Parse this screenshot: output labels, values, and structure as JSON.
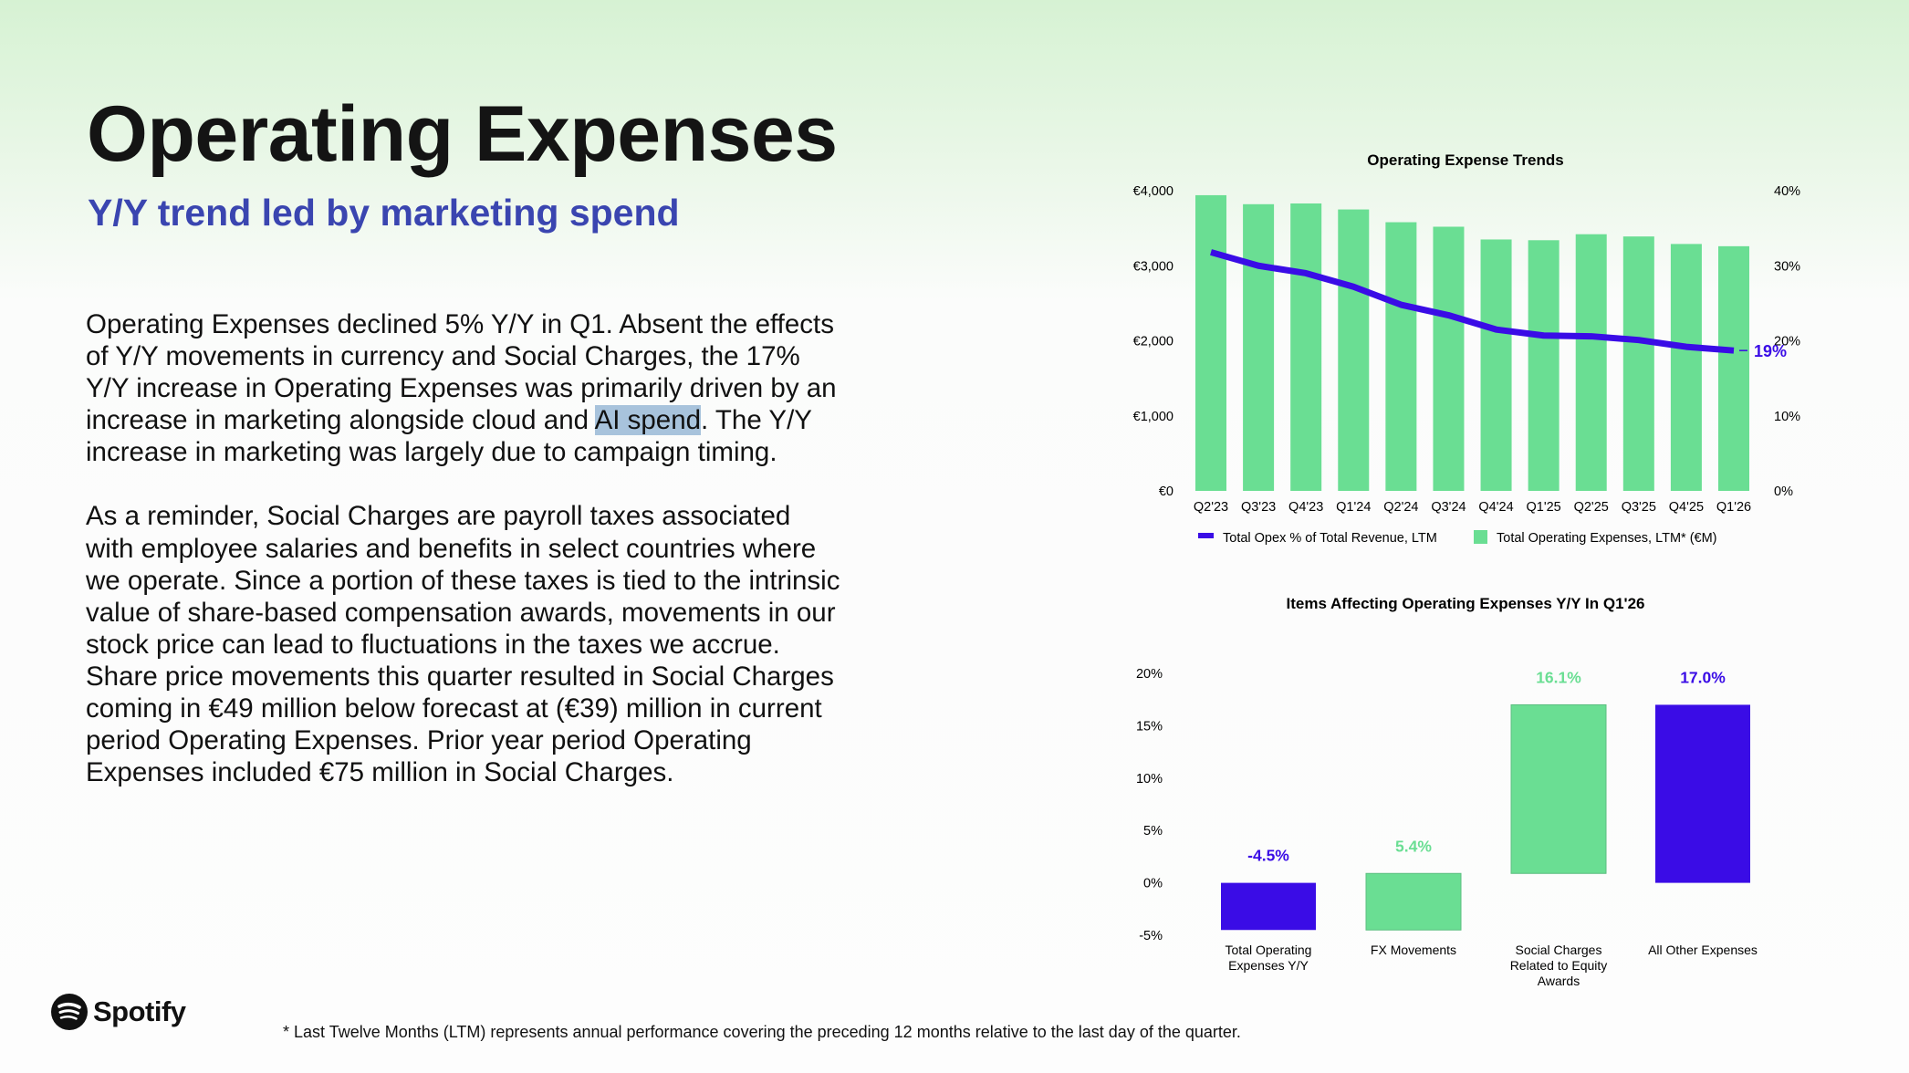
{
  "header": {
    "title": "Operating Expenses",
    "subtitle": "Y/Y trend led by marketing spend"
  },
  "body": {
    "paragraph1": {
      "lines": [
        "Operating Expenses declined 5% Y/Y in Q1. Absent the effects",
        "of Y/Y movements in currency and Social Charges, the 17%",
        "Y/Y increase in Operating Expenses was primarily driven by an"
      ],
      "line4_before": "increase in marketing alongside cloud and ",
      "line4_selected": "AI spend",
      "line4_after": ". The Y/Y",
      "line5": "increase in marketing was largely due to campaign timing."
    },
    "paragraph2": {
      "lines": [
        "As a reminder, Social Charges are payroll taxes associated",
        "with employee salaries and benefits in select countries where",
        "we operate. Since a portion of these taxes is tied to the intrinsic",
        "value of share-based compensation awards, movements in our",
        "stock price can lead to fluctuations in the taxes we accrue.",
        "Share price movements this quarter resulted in Social Charges",
        "coming in €49 million below forecast at (€39) million in current",
        "period Operating Expenses. Prior year period Operating",
        "Expenses included €75 million in Social Charges."
      ]
    }
  },
  "logo": {
    "text": "Spotify",
    "icon": "spotify-logo-icon"
  },
  "footnote": "* Last Twelve Months (LTM) represents annual performance covering the preceding 12 months relative to the last day of the quarter.",
  "colors": {
    "green": "#6ade93",
    "purple": "#3a0ce6",
    "subtitle": "#3a45b0"
  },
  "chart_data": [
    {
      "type": "bar+line",
      "title": "Operating Expense Trends",
      "categories": [
        "Q2'23",
        "Q3'23",
        "Q4'23",
        "Q1'24",
        "Q2'24",
        "Q3'24",
        "Q4'24",
        "Q1'25",
        "Q2'25",
        "Q3'25",
        "Q4'25",
        "Q1'26"
      ],
      "series": [
        {
          "name": "Total Operating Expenses, LTM* (€M)",
          "type": "bar",
          "axis": "left",
          "values": [
            3940,
            3820,
            3830,
            3750,
            3580,
            3520,
            3350,
            3340,
            3420,
            3390,
            3290,
            3260
          ]
        },
        {
          "name": "Total Opex % of Total Revenue, LTM",
          "type": "line",
          "axis": "right",
          "values": [
            31.8,
            30.0,
            29.0,
            27.2,
            24.8,
            23.4,
            21.5,
            20.7,
            20.6,
            20.1,
            19.2,
            18.7
          ]
        }
      ],
      "left_ticks": [
        "€0",
        "€1,000",
        "€2,000",
        "€3,000",
        "€4,000"
      ],
      "left_ylim": [
        0,
        4000
      ],
      "right_ticks": [
        "0%",
        "10%",
        "20%",
        "30%",
        "40%"
      ],
      "right_ylim": [
        0,
        40
      ],
      "end_label": "19%",
      "legend": {
        "placement": "bottom",
        "entries": [
          "Total Opex % of Total Revenue, LTM",
          "Total Operating Expenses, LTM* (€M)"
        ]
      },
      "grid": false
    },
    {
      "type": "waterfall",
      "title": "Items Affecting Operating Expenses Y/Y In Q1'26",
      "categories": [
        "Total Operating Expenses Y/Y",
        "FX Movements",
        "Social Charges Related to Equity Awards",
        "All Other Expenses"
      ],
      "category_lines": [
        [
          "Total Operating",
          "Expenses Y/Y"
        ],
        [
          "FX Movements"
        ],
        [
          "Social Charges",
          "Related to Equity",
          "Awards"
        ],
        [
          "All Other Expenses"
        ]
      ],
      "values": [
        -4.5,
        5.4,
        16.1,
        17.0
      ],
      "ranges": [
        [
          -4.5,
          0
        ],
        [
          -4.5,
          0.9
        ],
        [
          0.9,
          17.0
        ],
        [
          0,
          17.0
        ]
      ],
      "labels": [
        "-4.5%",
        "5.4%",
        "16.1%",
        "17.0%"
      ],
      "bar_colors": [
        "purple",
        "green",
        "green",
        "purple"
      ],
      "y_ticks": [
        "-5%",
        "0%",
        "5%",
        "10%",
        "15%",
        "20%"
      ],
      "ylim": [
        -5,
        20
      ],
      "grid": false
    }
  ]
}
